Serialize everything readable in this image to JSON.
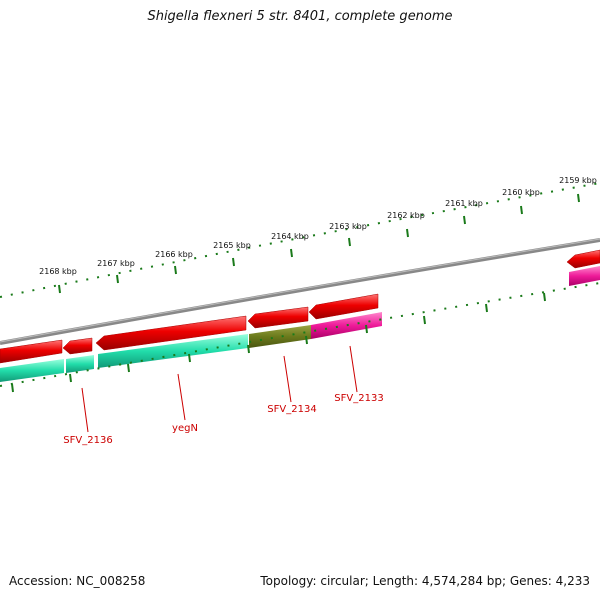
{
  "title": "Shigella flexneri 5 str. 8401, complete genome",
  "accession": "Accession: NC_008258",
  "summary": "Topology: circular; Length: 4,574,284 bp; Genes: 4,233",
  "scale_labels": [
    "2159 kbp",
    "2160 kbp",
    "2161 kbp",
    "2162 kbp",
    "2163 kbp",
    "2164 kbp",
    "2165 kbp",
    "2166 kbp",
    "2167 kbp",
    "2168 kbp"
  ],
  "gene_labels": [
    "SFV_2133",
    "SFV_2134",
    "yegN",
    "SFV_2136"
  ],
  "colors": {
    "backbone": "#888888",
    "ticks": "#1a7a1a",
    "cds": "#ee0000",
    "label": "#cc0000",
    "cog_aqua": "#22ddaa",
    "cog_olive": "#6b7a1c",
    "cog_magenta": "#ee1a99"
  }
}
